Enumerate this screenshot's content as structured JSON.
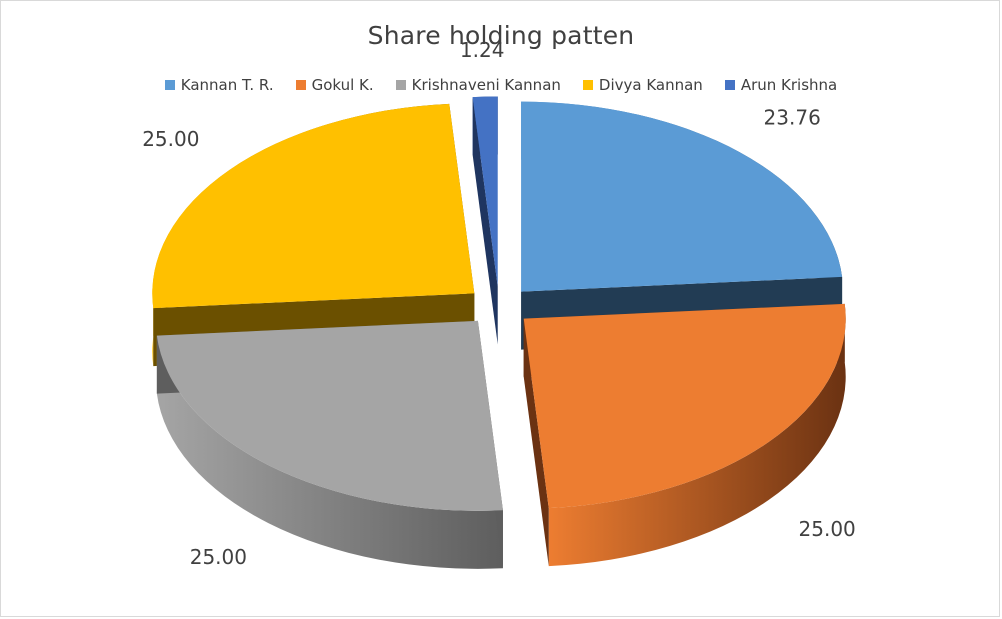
{
  "chart_data": {
    "type": "pie",
    "style": "3d-exploded",
    "title": "Share holding patten",
    "legend_position": "top",
    "slices": [
      {
        "label": "Kannan T. R.",
        "value": 23.76,
        "display": "23.76",
        "color": "#5B9BD5",
        "side": "#223C54"
      },
      {
        "label": "Gokul K.",
        "value": 25.0,
        "display": "25.00",
        "color": "#ED7D31",
        "side": "#6B3212"
      },
      {
        "label": "Krishnaveni Kannan",
        "value": 25.0,
        "display": "25.00",
        "color": "#A5A5A5",
        "side": "#5E5E5E"
      },
      {
        "label": "Divya Kannan",
        "value": 25.0,
        "display": "25.00",
        "color": "#FFC000",
        "side": "#6B5000"
      },
      {
        "label": "Arun Krishna",
        "value": 1.24,
        "display": "1.24",
        "color": "#4472C4",
        "side": "#1F3560"
      }
    ]
  }
}
